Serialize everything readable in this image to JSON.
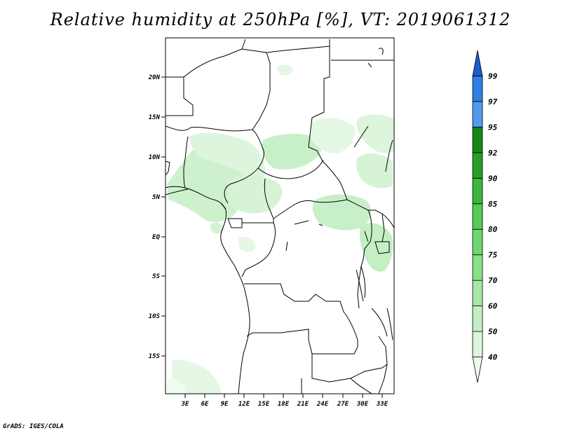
{
  "title": "Relative humidity at 250hPa [%], VT: 2019061312",
  "credit": "GrADS: IGES/COLA",
  "axes": {
    "lon_ticks": [
      "3E",
      "6E",
      "9E",
      "12E",
      "15E",
      "18E",
      "21E",
      "24E",
      "27E",
      "30E",
      "33E"
    ],
    "lat_ticks": [
      "20N",
      "15N",
      "10N",
      "5N",
      "EQ",
      "5S",
      "10S",
      "15S"
    ]
  },
  "colorbar": {
    "levels": [
      "40",
      "50",
      "60",
      "70",
      "75",
      "80",
      "85",
      "90",
      "92",
      "95",
      "97",
      "99"
    ],
    "colors": [
      "#f0fbf0",
      "#dcf5dc",
      "#c3efc3",
      "#a6e8a6",
      "#89e089",
      "#6ed66e",
      "#54cc54",
      "#3bb83b",
      "#279e27",
      "#168716",
      "#4f9bef",
      "#2d7fe3",
      "#1a5fc8"
    ]
  },
  "colors": {
    "borders": "#000000",
    "low_humidity": "#c8f0c8",
    "mid_humidity": "#b0e8b0"
  }
}
